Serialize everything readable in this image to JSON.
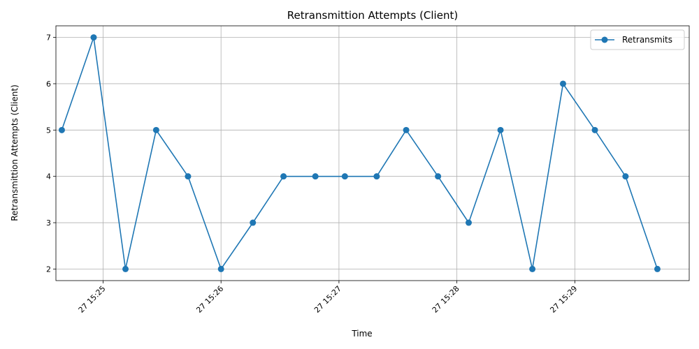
{
  "chart_data": {
    "type": "line",
    "title": "Retransmittion Attempts (Client)",
    "xlabel": "Time",
    "ylabel": "Retransmittion Attempts (Client)",
    "x_ticks": [
      "27 15:25",
      "27 15:26",
      "27 15:27",
      "27 15:28",
      "27 15:29"
    ],
    "x_tick_minutes": [
      25,
      26,
      27,
      28,
      29
    ],
    "y_ticks": [
      2,
      3,
      4,
      5,
      6,
      7
    ],
    "xlim_minutes": [
      24.6,
      29.97
    ],
    "ylim": [
      1.75,
      7.25
    ],
    "grid": true,
    "legend_position": "top-right",
    "color": "#1f77b4",
    "series": [
      {
        "name": "Retransmits",
        "x_minutes": [
          24.65,
          24.92,
          25.19,
          25.45,
          25.72,
          26.0,
          26.27,
          26.53,
          26.8,
          27.05,
          27.32,
          27.57,
          27.84,
          28.1,
          28.37,
          28.64,
          28.9,
          29.17,
          29.43,
          29.7
        ],
        "values": [
          5,
          7,
          2,
          5,
          4,
          2,
          3,
          4,
          4,
          4,
          4,
          5,
          4,
          3,
          5,
          2,
          6,
          5,
          4,
          2
        ]
      }
    ]
  }
}
